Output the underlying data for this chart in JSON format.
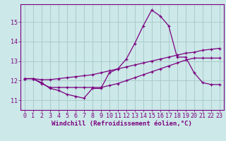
{
  "xlabel": "Windchill (Refroidissement éolien,°C)",
  "xlim": [
    -0.5,
    23.5
  ],
  "ylim": [
    10.5,
    15.9
  ],
  "yticks": [
    11,
    12,
    13,
    14,
    15
  ],
  "xticks": [
    0,
    1,
    2,
    3,
    4,
    5,
    6,
    7,
    8,
    9,
    10,
    11,
    12,
    13,
    14,
    15,
    16,
    17,
    18,
    19,
    20,
    21,
    22,
    23
  ],
  "background_color": "#cce8e8",
  "grid_color": "#aacccc",
  "line_color": "#7b0080",
  "spine_color": "#7b0080",
  "line1_x": [
    0,
    1,
    2,
    3,
    4,
    5,
    6,
    7,
    8,
    9,
    10,
    11,
    12,
    13,
    14,
    15,
    16,
    17,
    18,
    19,
    20,
    21,
    22,
    23
  ],
  "line1_y": [
    12.1,
    12.1,
    11.9,
    11.6,
    11.5,
    11.3,
    11.2,
    11.1,
    11.6,
    11.6,
    12.4,
    12.6,
    13.1,
    13.9,
    14.8,
    15.6,
    15.3,
    14.8,
    13.2,
    13.2,
    12.4,
    11.9,
    11.8,
    11.8
  ],
  "line2_x": [
    0,
    1,
    2,
    3,
    4,
    5,
    6,
    7,
    8,
    9,
    10,
    11,
    12,
    13,
    14,
    15,
    16,
    17,
    18,
    19,
    20,
    21,
    22,
    23
  ],
  "line2_y": [
    12.1,
    12.1,
    11.85,
    11.65,
    11.65,
    11.65,
    11.65,
    11.65,
    11.65,
    11.65,
    11.75,
    11.85,
    12.0,
    12.15,
    12.3,
    12.45,
    12.6,
    12.75,
    12.9,
    13.05,
    13.15,
    13.15,
    13.15,
    13.15
  ],
  "line3_x": [
    0,
    1,
    2,
    3,
    4,
    5,
    6,
    7,
    8,
    9,
    10,
    11,
    12,
    13,
    14,
    15,
    16,
    17,
    18,
    19,
    20,
    21,
    22,
    23
  ],
  "line3_y": [
    12.1,
    12.1,
    12.05,
    12.05,
    12.1,
    12.15,
    12.2,
    12.25,
    12.3,
    12.4,
    12.5,
    12.6,
    12.7,
    12.8,
    12.9,
    13.0,
    13.1,
    13.2,
    13.3,
    13.4,
    13.45,
    13.55,
    13.6,
    13.65
  ],
  "xlabel_fontsize": 6.5,
  "tick_fontsize": 6.0,
  "linewidth": 0.9,
  "markersize": 3.5
}
